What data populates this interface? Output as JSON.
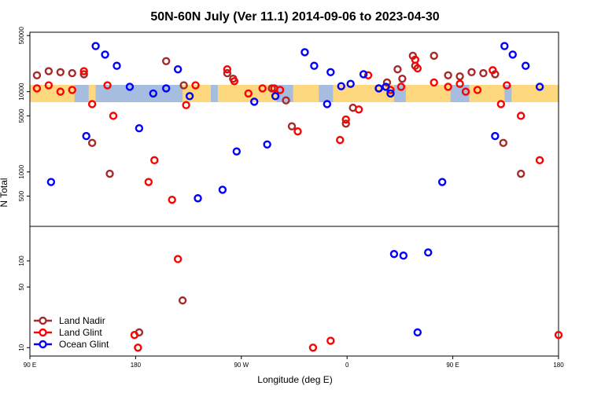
{
  "chart_data": {
    "type": "scatter",
    "title": "50N-60N July (Ver 11.1)   2014-09-06 to 2023-04-30",
    "xlabel": "Longitude (deg E)",
    "ylabel": "N Total",
    "x_ticks": [
      {
        "value": 90,
        "label": "90 E"
      },
      {
        "value": 180,
        "label": "180"
      },
      {
        "value": 270,
        "label": "90 W"
      },
      {
        "value": 360,
        "label": "0"
      },
      {
        "value": 450,
        "label": "90 E"
      },
      {
        "value": 540,
        "label": "180"
      }
    ],
    "xlim": [
      90,
      540
    ],
    "top_panel": {
      "scale": "log",
      "ylim": [
        210,
        55000
      ],
      "y_ticks": [
        500,
        1000,
        5000,
        10000,
        50000
      ],
      "map_band": {
        "lat_range": "50N-60N",
        "ocean_color": "#a7bddf",
        "land_color": "#fdd87e"
      }
    },
    "bottom_panel": {
      "scale": "log",
      "ylim": [
        8,
        250
      ],
      "y_ticks": [
        10,
        50,
        100
      ]
    },
    "series": [
      {
        "name": "Land Nadir",
        "color": "#a52a2a",
        "points": [
          [
            96,
            16000
          ],
          [
            106,
            18000
          ],
          [
            116,
            17500
          ],
          [
            126,
            17000
          ],
          [
            136,
            16500
          ],
          [
            143,
            2300
          ],
          [
            158,
            950
          ],
          [
            206,
            24000
          ],
          [
            221,
            12000
          ],
          [
            258,
            17000
          ],
          [
            263,
            14500
          ],
          [
            296,
            11000
          ],
          [
            308,
            7800
          ],
          [
            313,
            3700
          ],
          [
            359,
            4000
          ],
          [
            365,
            6300
          ],
          [
            387,
            11000
          ],
          [
            394,
            13000
          ],
          [
            403,
            19000
          ],
          [
            407,
            14500
          ],
          [
            416,
            28000
          ],
          [
            418,
            21000
          ],
          [
            434,
            28000
          ],
          [
            446,
            16000
          ],
          [
            456,
            15500
          ],
          [
            466,
            17500
          ],
          [
            476,
            17000
          ],
          [
            486,
            16500
          ],
          [
            493,
            2300
          ],
          [
            508,
            950
          ],
          [
            183,
            15
          ],
          [
            220,
            35
          ]
        ]
      },
      {
        "name": "Land Glint",
        "color": "#ff0000",
        "points": [
          [
            96,
            11000
          ],
          [
            106,
            12000
          ],
          [
            116,
            10000
          ],
          [
            126,
            10500
          ],
          [
            136,
            18000
          ],
          [
            143,
            7000
          ],
          [
            156,
            12000
          ],
          [
            161,
            5000
          ],
          [
            191,
            750
          ],
          [
            196,
            1400
          ],
          [
            211,
            450
          ],
          [
            223,
            6800
          ],
          [
            231,
            12000
          ],
          [
            258,
            19000
          ],
          [
            264,
            13500
          ],
          [
            276,
            9500
          ],
          [
            288,
            11000
          ],
          [
            298,
            11000
          ],
          [
            303,
            10500
          ],
          [
            318,
            3200
          ],
          [
            354,
            2500
          ],
          [
            359,
            4500
          ],
          [
            370,
            6000
          ],
          [
            378,
            16000
          ],
          [
            397,
            10500
          ],
          [
            406,
            11500
          ],
          [
            418,
            25000
          ],
          [
            420,
            19500
          ],
          [
            434,
            13000
          ],
          [
            446,
            11500
          ],
          [
            456,
            12500
          ],
          [
            461,
            10000
          ],
          [
            471,
            10500
          ],
          [
            484,
            18500
          ],
          [
            491,
            7000
          ],
          [
            496,
            12000
          ],
          [
            508,
            5000
          ],
          [
            524,
            1400
          ],
          [
            179,
            14
          ],
          [
            182,
            10
          ],
          [
            216,
            105
          ],
          [
            346,
            12
          ],
          [
            331,
            10
          ],
          [
            540,
            14
          ]
        ]
      },
      {
        "name": "Ocean Glint",
        "color": "#0000ff",
        "points": [
          [
            108,
            750
          ],
          [
            138,
            2800
          ],
          [
            146,
            37000
          ],
          [
            154,
            29000
          ],
          [
            164,
            21000
          ],
          [
            175,
            11500
          ],
          [
            183,
            3500
          ],
          [
            195,
            9500
          ],
          [
            206,
            11000
          ],
          [
            216,
            19000
          ],
          [
            226,
            8800
          ],
          [
            233,
            470
          ],
          [
            254,
            600
          ],
          [
            266,
            1800
          ],
          [
            281,
            7500
          ],
          [
            292,
            2200
          ],
          [
            299,
            8800
          ],
          [
            324,
            31000
          ],
          [
            332,
            21000
          ],
          [
            346,
            17500
          ],
          [
            343,
            7000
          ],
          [
            355,
            11700
          ],
          [
            363,
            12500
          ],
          [
            374,
            16500
          ],
          [
            387,
            11000
          ],
          [
            393,
            11500
          ],
          [
            397,
            9500
          ],
          [
            486,
            2800
          ],
          [
            494,
            37000
          ],
          [
            501,
            29000
          ],
          [
            512,
            21000
          ],
          [
            524,
            11500
          ],
          [
            441,
            750
          ],
          [
            400,
            120
          ],
          [
            408,
            115
          ],
          [
            429,
            125
          ],
          [
            420,
            15
          ]
        ]
      }
    ]
  }
}
